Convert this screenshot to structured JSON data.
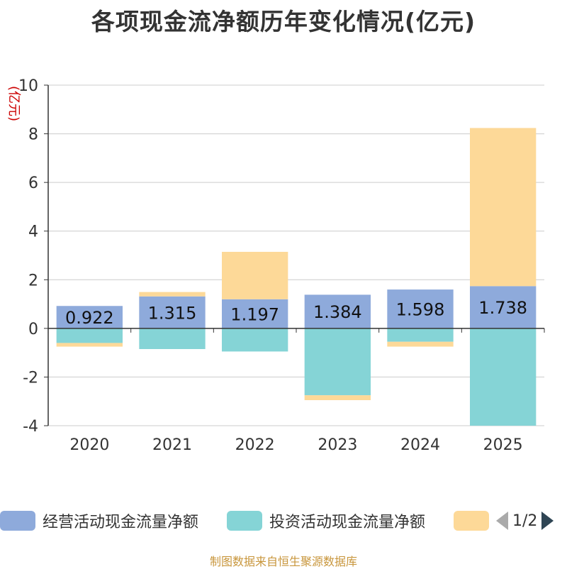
{
  "chart_data": {
    "type": "bar",
    "stacked": true,
    "title": "各项现金流净额历年变化情况(亿元)",
    "ylabel": "(亿元)",
    "xlabel": "",
    "ylim": [
      -4,
      10
    ],
    "yticks": [
      -4,
      -2,
      0,
      2,
      4,
      6,
      8,
      10
    ],
    "categories": [
      "2020",
      "2021",
      "2022",
      "2023",
      "2024",
      "2025"
    ],
    "series": [
      {
        "name": "经营活动现金流量净额",
        "color": "#8eaadb",
        "values": [
          0.922,
          1.315,
          1.197,
          1.384,
          1.598,
          1.738
        ],
        "show_labels": true
      },
      {
        "name": "投资活动现金流量净额",
        "color": "#85d4d6",
        "values": [
          -0.6,
          -0.85,
          -0.95,
          -2.75,
          -0.55,
          -4.0
        ],
        "show_labels": false
      },
      {
        "name": "",
        "color": "#fdd998",
        "values": [
          -0.15,
          0.18,
          1.95,
          -0.2,
          -0.2,
          6.5
        ],
        "show_labels": false
      }
    ],
    "legend_position": "bottom"
  },
  "legend": {
    "page_text": "1/2",
    "prev_icon": "triangle-left-icon",
    "next_icon": "triangle-right-icon"
  },
  "source_text": "制图数据来自恒生聚源数据库"
}
